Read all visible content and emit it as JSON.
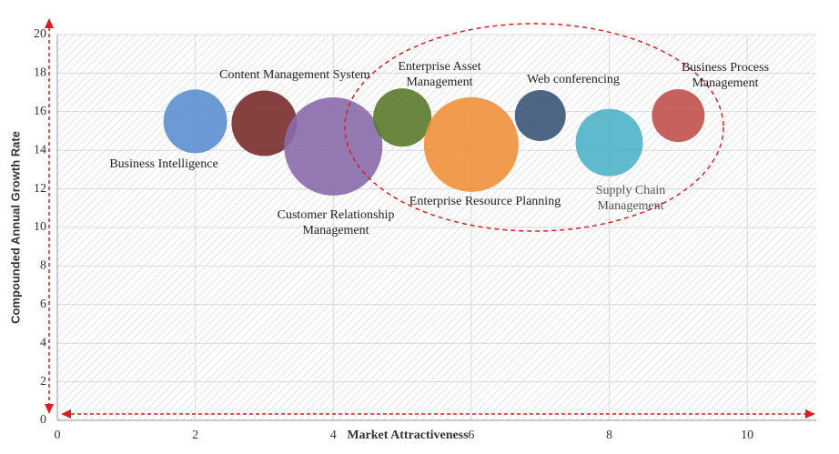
{
  "chart_data": {
    "type": "scatter",
    "x_label": "Market Attractiveness",
    "y_label": "Compounded Annual Growth Rate",
    "xlim": [
      0,
      11
    ],
    "xticks": [
      0,
      2,
      4,
      6,
      8,
      10
    ],
    "ylim": [
      0,
      20
    ],
    "yticks": [
      0,
      2,
      4,
      6,
      8,
      10,
      12,
      14,
      16,
      18,
      20
    ],
    "grid": true,
    "series": [
      {
        "name": "Business Intelligence",
        "color": "#5b8fd0",
        "x": [
          2
        ],
        "values": [
          15.5
        ],
        "sizes": [
          35
        ]
      },
      {
        "name": "Content Management System",
        "color": "#7a2b2b",
        "x": [
          3
        ],
        "values": [
          15.4
        ],
        "sizes": [
          36
        ]
      },
      {
        "name": "Customer Relationship Management",
        "color": "#8a6aaa",
        "x": [
          4
        ],
        "values": [
          14.2
        ],
        "sizes": [
          54
        ]
      },
      {
        "name": "Enterprise Asset Management",
        "color": "#5a7a2e",
        "x": [
          5
        ],
        "values": [
          15.7
        ],
        "sizes": [
          32
        ]
      },
      {
        "name": "Enterprise Resource Planning",
        "color": "#f0903c",
        "x": [
          6
        ],
        "values": [
          14.3
        ],
        "sizes": [
          52
        ]
      },
      {
        "name": "Web conferencing",
        "color": "#3b5578",
        "x": [
          7
        ],
        "values": [
          15.8
        ],
        "sizes": [
          28
        ]
      },
      {
        "name": "Supply Chain Management",
        "color": "#4fb2c9",
        "x": [
          8
        ],
        "values": [
          14.4
        ],
        "sizes": [
          37
        ]
      },
      {
        "name": "Business Process Management",
        "color": "#c0504d",
        "x": [
          9
        ],
        "values": [
          15.8
        ],
        "sizes": [
          29
        ]
      }
    ]
  }
}
